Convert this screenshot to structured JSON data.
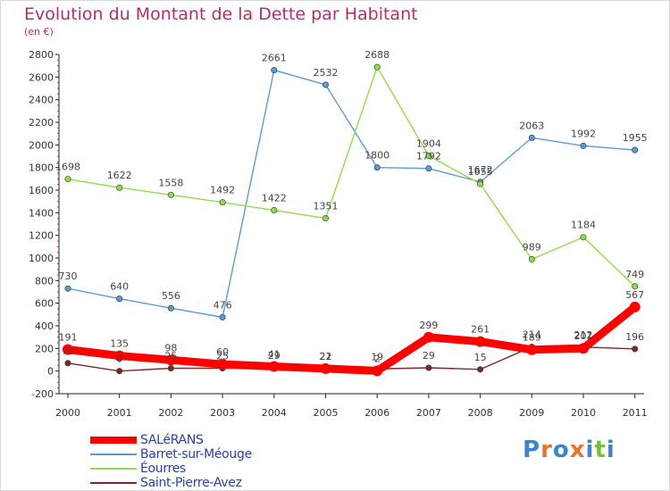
{
  "header": {
    "title": "Evolution du Montant de la Dette par Habitant",
    "subtitle": "(en €)"
  },
  "brand": {
    "text": "Proxiti",
    "letters": [
      "P",
      "r",
      "o",
      "x",
      "i",
      "t",
      "i"
    ],
    "colors": [
      "#3a86c8",
      "#e8732c",
      "#3a86c8",
      "#e8732c",
      "#3a86c8",
      "#7dbb3c",
      "#3a86c8"
    ]
  },
  "chart_data": {
    "type": "line",
    "title": "Evolution du Montant de la Dette par Habitant",
    "subtitle": "(en €)",
    "xlabel": "",
    "ylabel": "",
    "x": [
      "2000",
      "2001",
      "2002",
      "2003",
      "2004",
      "2005",
      "2006",
      "2007",
      "2008",
      "2009",
      "2010",
      "2011"
    ],
    "ylim": [
      -200,
      2800
    ],
    "yticks": [
      -200,
      0,
      200,
      400,
      600,
      800,
      1000,
      1200,
      1400,
      1600,
      1800,
      2000,
      2200,
      2400,
      2600,
      2800
    ],
    "grid": false,
    "legend_position": "bottom-left",
    "series": [
      {
        "name": "SALéRANS",
        "color": "#ff0000",
        "values": [
          191,
          135,
          98,
          60,
          41,
          22,
          2,
          299,
          261,
          189,
          201,
          567
        ],
        "labels": [
          "191",
          "135",
          "98",
          "60",
          "41",
          "22",
          "2",
          "299",
          "261",
          "189",
          "201",
          "567"
        ]
      },
      {
        "name": "Barret-sur-Méouge",
        "color": "#5b9bd5",
        "values": [
          730,
          640,
          556,
          476,
          2661,
          2532,
          1800,
          1792,
          1672,
          2063,
          1992,
          1955
        ],
        "labels": [
          "730",
          "640",
          "556",
          "476",
          "2661",
          "2532",
          "1800",
          "1792",
          "1672",
          "2063",
          "1992",
          "1955"
        ]
      },
      {
        "name": "Éourres",
        "color": "#8fdc4a",
        "values": [
          1698,
          1622,
          1558,
          1492,
          1422,
          1351,
          2688,
          1904,
          1655,
          989,
          1184,
          749
        ],
        "labels": [
          "1698",
          "1622",
          "1558",
          "1492",
          "1422",
          "1351",
          "2688",
          "1904",
          "1655",
          "989",
          "1184",
          "749"
        ]
      },
      {
        "name": "Saint-Pierre-Avez",
        "color": "#7a2a2a",
        "values": [
          70,
          0,
          25,
          25,
          29,
          21,
          19,
          29,
          15,
          214,
          212,
          196
        ],
        "labels": [
          "70",
          "0",
          "25",
          "25",
          "29",
          "21",
          "19",
          "29",
          "15",
          "214",
          "212",
          "196"
        ]
      }
    ]
  }
}
